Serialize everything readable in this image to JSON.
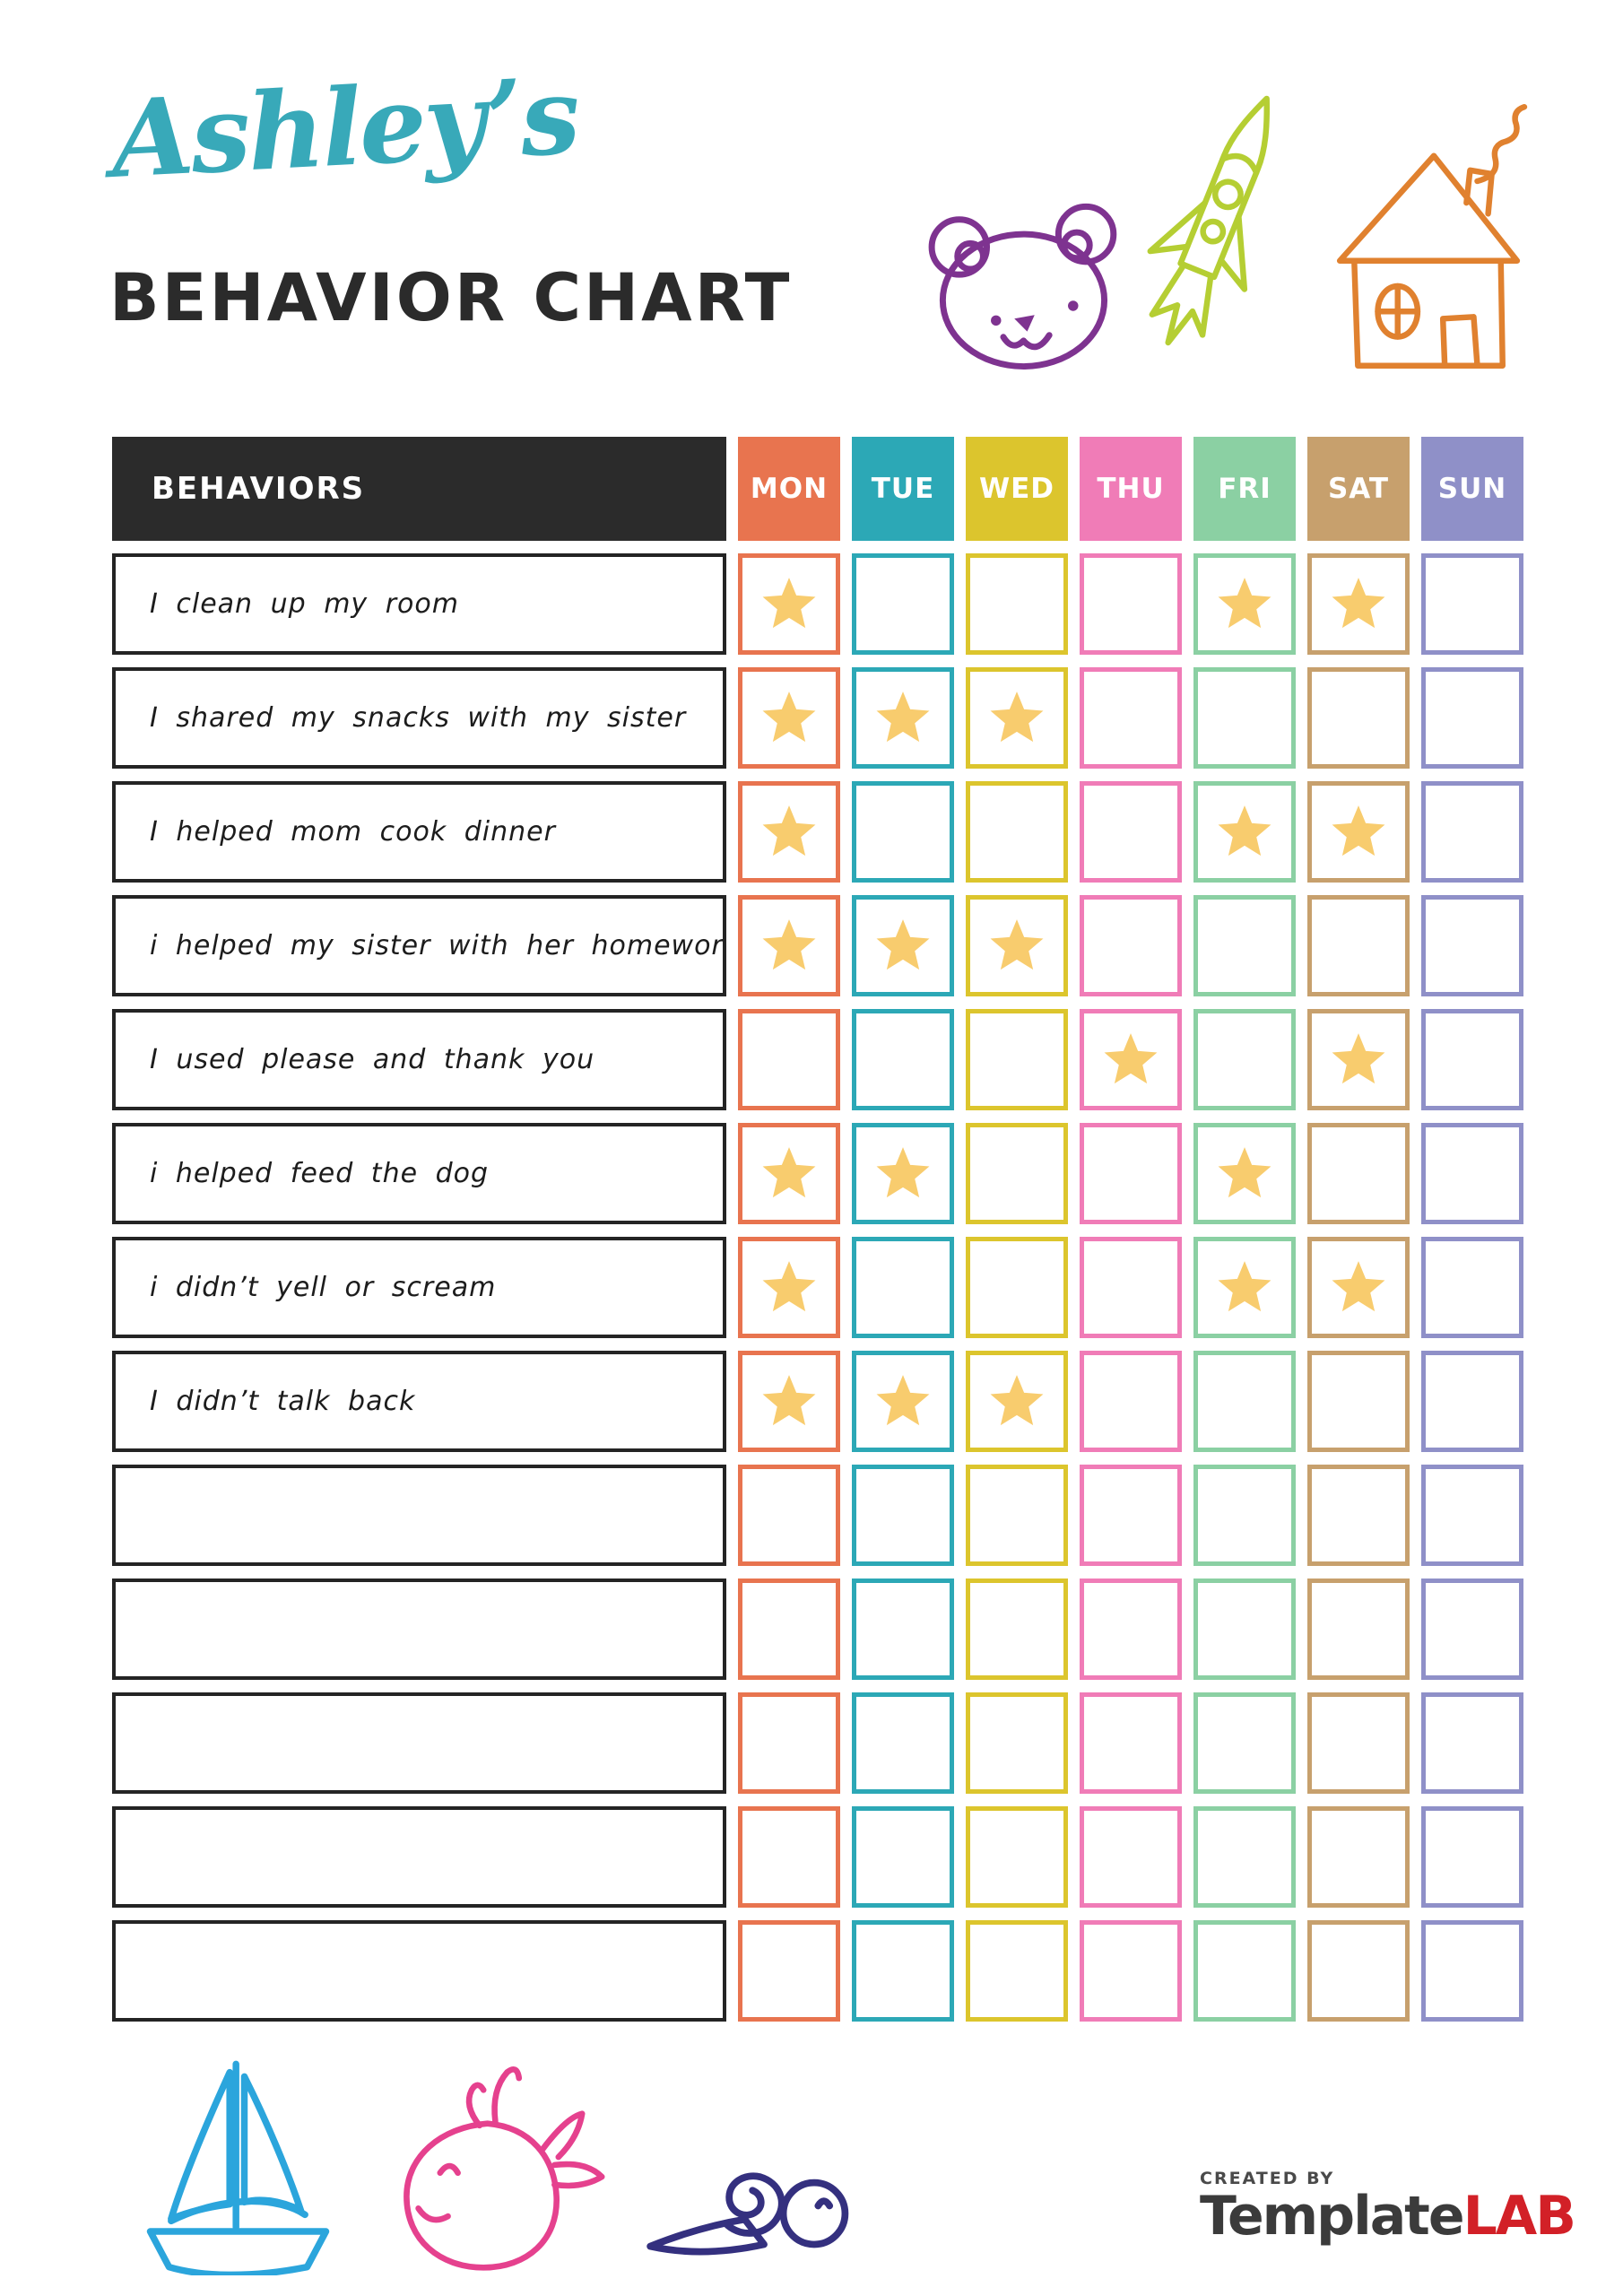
{
  "title": {
    "name": "Ashley’s",
    "subtitle": "BEHAVIOR CHART",
    "name_color": "#38A9B9",
    "subtitle_color": "#2B2B2B"
  },
  "table": {
    "behaviors_header": "BEHAVIORS",
    "header_bg": "#2B2B2B",
    "star_color": "#F8CC6E",
    "days": [
      {
        "label": "MON",
        "color": "#E8744F"
      },
      {
        "label": "TUE",
        "color": "#2CA8B6"
      },
      {
        "label": "WED",
        "color": "#DCC52D"
      },
      {
        "label": "THU",
        "color": "#F07CB7"
      },
      {
        "label": "FRI",
        "color": "#8BD0A3"
      },
      {
        "label": "SAT",
        "color": "#C7A06D"
      },
      {
        "label": "SUN",
        "color": "#8F90C8"
      }
    ],
    "rows": [
      {
        "label": "I clean up my room",
        "stars": [
          1,
          0,
          0,
          0,
          1,
          1,
          0
        ]
      },
      {
        "label": "I shared my snacks with my sister",
        "stars": [
          1,
          1,
          1,
          0,
          0,
          0,
          0
        ]
      },
      {
        "label": "I helped mom cook dinner",
        "stars": [
          1,
          0,
          0,
          0,
          1,
          1,
          0
        ]
      },
      {
        "label": "i helped my sister with her homework",
        "stars": [
          1,
          1,
          1,
          0,
          0,
          0,
          0
        ]
      },
      {
        "label": "I used please and thank you",
        "stars": [
          0,
          0,
          0,
          1,
          0,
          1,
          0
        ]
      },
      {
        "label": "i helped feed the dog",
        "stars": [
          1,
          1,
          0,
          0,
          1,
          0,
          0
        ]
      },
      {
        "label": "i didn’t yell or scream",
        "stars": [
          1,
          0,
          0,
          0,
          1,
          1,
          0
        ]
      },
      {
        "label": "I didn’t talk back",
        "stars": [
          1,
          1,
          1,
          0,
          0,
          0,
          0
        ]
      },
      {
        "label": "",
        "stars": [
          0,
          0,
          0,
          0,
          0,
          0,
          0
        ]
      },
      {
        "label": "",
        "stars": [
          0,
          0,
          0,
          0,
          0,
          0,
          0
        ]
      },
      {
        "label": "",
        "stars": [
          0,
          0,
          0,
          0,
          0,
          0,
          0
        ]
      },
      {
        "label": "",
        "stars": [
          0,
          0,
          0,
          0,
          0,
          0,
          0
        ]
      },
      {
        "label": "",
        "stars": [
          0,
          0,
          0,
          0,
          0,
          0,
          0
        ]
      }
    ]
  },
  "doodles": {
    "bear_color": "#7E3390",
    "rocket_color": "#B5CE33",
    "house_color": "#E0812F",
    "boat_color": "#2BA5DC",
    "whale_color": "#E5418E",
    "snail_color": "#34307F",
    "names": [
      "teddy-bear-icon",
      "rocket-icon",
      "house-icon",
      "sailboat-icon",
      "whale-icon",
      "snail-icon",
      "star-icon"
    ]
  },
  "footer": {
    "created_by": "CREATED BY",
    "brand_primary": "Template",
    "brand_secondary": "LAB",
    "brand_primary_color": "#3B3B3B",
    "brand_secondary_color": "#D22027"
  }
}
